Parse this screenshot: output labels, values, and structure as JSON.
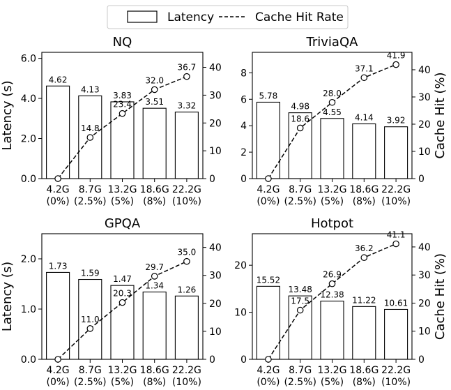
{
  "legend": {
    "bar_label": "Latency",
    "line_label": "Cache Hit Rate",
    "placement": "top-center"
  },
  "chart_data": [
    {
      "type": "bar",
      "title": "NQ",
      "categories": [
        "4.2G\n(0%)",
        "8.7G\n(2.5%)",
        "13.2G\n(5%)",
        "18.6G\n(8%)",
        "22.2G\n(10%)"
      ],
      "series": [
        {
          "name": "Latency",
          "axis": "left",
          "values": [
            4.62,
            4.13,
            3.83,
            3.51,
            3.32
          ],
          "labels": [
            "4.62",
            "4.13",
            "3.83",
            "3.51",
            "3.32"
          ]
        },
        {
          "name": "Cache Hit Rate",
          "axis": "right",
          "type": "line",
          "values": [
            0,
            14.8,
            23.4,
            32.0,
            36.7
          ],
          "labels": [
            "",
            "14.8",
            "23.4",
            "32.0",
            "36.7"
          ]
        }
      ],
      "ylabel": "Latency (s)",
      "ylim": [
        0,
        6.3
      ],
      "yticks": [
        0,
        2,
        4,
        6
      ],
      "ytick_labels": [
        "0.0",
        "2.0",
        "4.0",
        "6.0"
      ],
      "y2label": "",
      "y2lim": [
        0,
        45.4
      ],
      "y2ticks": [
        0,
        10,
        20,
        30,
        40
      ],
      "y2tick_labels": [
        "0",
        "10",
        "20",
        "30",
        "40"
      ]
    },
    {
      "type": "bar",
      "title": "TriviaQA",
      "categories": [
        "4.2G\n(0%)",
        "8.7G\n(2.5%)",
        "13.2G\n(5%)",
        "18.6G\n(8%)",
        "22.2G\n(10%)"
      ],
      "series": [
        {
          "name": "Latency",
          "axis": "left",
          "values": [
            5.78,
            4.98,
            4.55,
            4.14,
            3.92
          ],
          "labels": [
            "5.78",
            "4.98",
            "4.55",
            "4.14",
            "3.92"
          ]
        },
        {
          "name": "Cache Hit Rate",
          "axis": "right",
          "type": "line",
          "values": [
            0,
            18.6,
            28.0,
            37.1,
            41.9
          ],
          "labels": [
            "",
            "18.6",
            "28.0",
            "37.1",
            "41.9"
          ]
        }
      ],
      "ylabel": "",
      "ylim": [
        0,
        9.55
      ],
      "yticks": [
        0,
        2,
        4,
        6,
        8
      ],
      "ytick_labels": [
        "0",
        "2",
        "4",
        "6",
        "8"
      ],
      "y2label": "Cache Hit (%)",
      "y2lim": [
        0,
        46.4
      ],
      "y2ticks": [
        0,
        10,
        20,
        30,
        40
      ],
      "y2tick_labels": [
        "0",
        "10",
        "20",
        "30",
        "40"
      ]
    },
    {
      "type": "bar",
      "title": "GPQA",
      "categories": [
        "4.2G\n(0%)",
        "8.7G\n(2.5%)",
        "13.2G\n(5%)",
        "18.6G\n(8%)",
        "22.2G\n(10%)"
      ],
      "series": [
        {
          "name": "Latency",
          "axis": "left",
          "values": [
            1.73,
            1.59,
            1.47,
            1.34,
            1.26
          ],
          "labels": [
            "1.73",
            "1.59",
            "1.47",
            "1.34",
            "1.26"
          ]
        },
        {
          "name": "Cache Hit Rate",
          "axis": "right",
          "type": "line",
          "values": [
            0,
            11.0,
            20.3,
            29.7,
            35.0
          ],
          "labels": [
            "",
            "11.0",
            "20.3",
            "29.7",
            "35.0"
          ]
        }
      ],
      "ylabel": "Latency (s)",
      "ylim": [
        0,
        2.5
      ],
      "yticks": [
        0,
        1,
        2
      ],
      "ytick_labels": [
        "0.0",
        "1.0",
        "2.0"
      ],
      "y2label": "",
      "y2lim": [
        0,
        44.9
      ],
      "y2ticks": [
        0,
        10,
        20,
        30,
        40
      ],
      "y2tick_labels": [
        "0",
        "10",
        "20",
        "30",
        "40"
      ]
    },
    {
      "type": "bar",
      "title": "Hotpot",
      "categories": [
        "4.2G\n(0%)",
        "8.7G\n(2.5%)",
        "13.2G\n(5%)",
        "18.6G\n(8%)",
        "22.2G\n(10%)"
      ],
      "series": [
        {
          "name": "Latency",
          "axis": "left",
          "values": [
            15.52,
            13.48,
            12.38,
            11.22,
            10.61
          ],
          "labels": [
            "15.52",
            "13.48",
            "12.38",
            "11.22",
            "10.61"
          ]
        },
        {
          "name": "Cache Hit Rate",
          "axis": "right",
          "type": "line",
          "values": [
            0,
            17.5,
            26.9,
            36.2,
            41.1
          ],
          "labels": [
            "",
            "17.5",
            "26.9",
            "36.2",
            "41.1"
          ]
        }
      ],
      "ylabel": "",
      "ylim": [
        0,
        26.7
      ],
      "yticks": [
        0,
        10,
        20
      ],
      "ytick_labels": [
        "0",
        "10",
        "20"
      ],
      "y2label": "Cache Hit (%)",
      "y2lim": [
        0,
        44.7
      ],
      "y2ticks": [
        0,
        10,
        20,
        30,
        40
      ],
      "y2tick_labels": [
        "0",
        "10",
        "20",
        "30",
        "40"
      ]
    }
  ]
}
